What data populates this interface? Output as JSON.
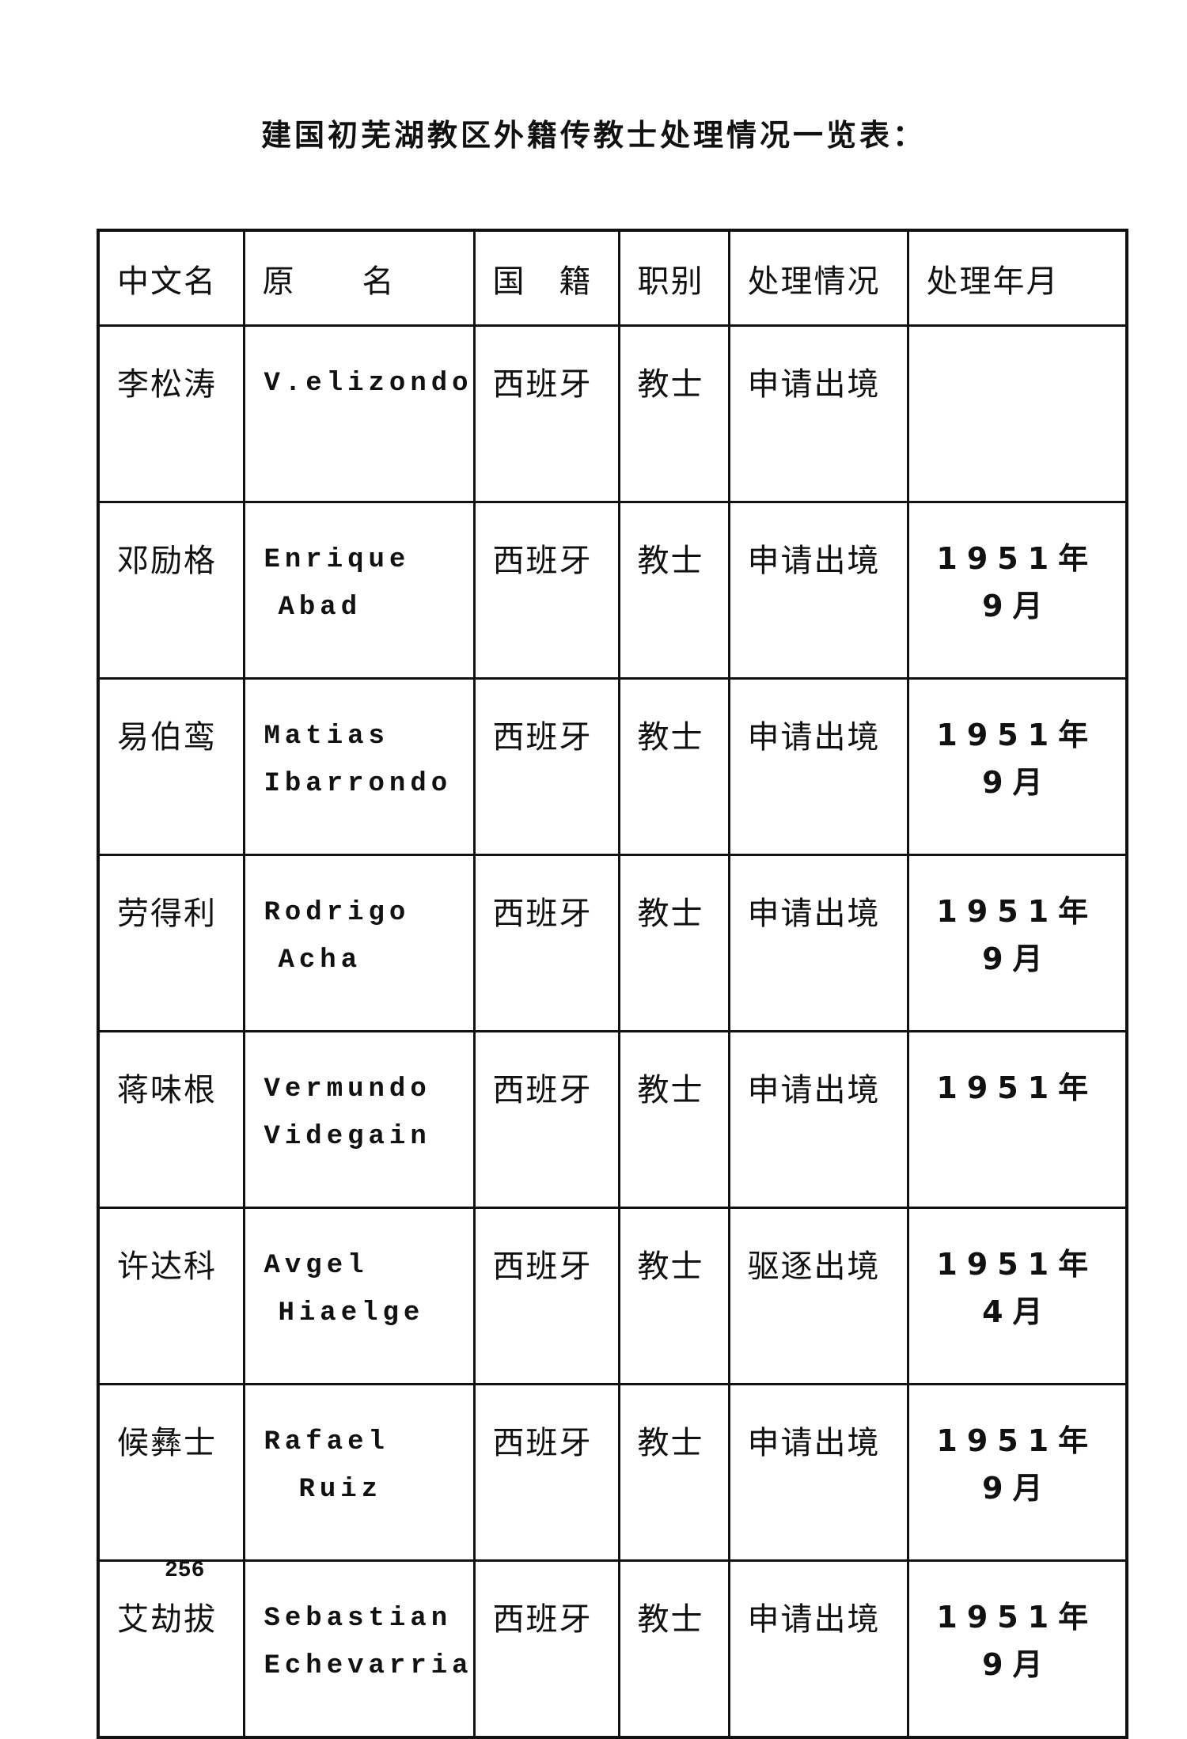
{
  "title": "建国初芜湖教区外籍传教士处理情况一览表：",
  "table": {
    "headers": [
      "中文名",
      "原　　名",
      "国　籍",
      "职别",
      "处理情况",
      "处理年月"
    ],
    "rows": [
      {
        "cn_name": "李松涛",
        "orig_name": [
          "V.elizondo",
          ""
        ],
        "nationality": "西班牙",
        "title": "教士",
        "status": "申请出境",
        "date": [
          "",
          ""
        ]
      },
      {
        "cn_name": "邓励格",
        "orig_name": [
          "Enrique",
          "Abad"
        ],
        "nationality": "西班牙",
        "title": "教士",
        "status": "申请出境",
        "date": [
          "1951年",
          "9月"
        ]
      },
      {
        "cn_name": "易伯鸾",
        "orig_name": [
          "Matias",
          "Ibarrondo"
        ],
        "nationality": "西班牙",
        "title": "教士",
        "status": "申请出境",
        "date": [
          "1951年",
          "9月"
        ]
      },
      {
        "cn_name": "劳得利",
        "orig_name": [
          "Rodrigo",
          "Acha"
        ],
        "nationality": "西班牙",
        "title": "教士",
        "status": "申请出境",
        "date": [
          "1951年",
          "9月"
        ]
      },
      {
        "cn_name": "蒋味根",
        "orig_name": [
          "Vermundo",
          "Videgain"
        ],
        "nationality": "西班牙",
        "title": "教士",
        "status": "申请出境",
        "date": [
          "1951年",
          ""
        ]
      },
      {
        "cn_name": "许达科",
        "orig_name": [
          "Avgel",
          "Hiaelge"
        ],
        "nationality": "西班牙",
        "title": "教士",
        "status": "驱逐出境",
        "date": [
          "1951年",
          "4月"
        ]
      },
      {
        "cn_name": "候彝士",
        "orig_name": [
          "Rafael",
          "Ruiz"
        ],
        "nationality": "西班牙",
        "title": "教士",
        "status": "申请出境",
        "date": [
          "1951年",
          "9月"
        ]
      },
      {
        "cn_name": "艾劫拔",
        "orig_name": [
          "Sebastian",
          "Echevarria"
        ],
        "nationality": "西班牙",
        "title": "教士",
        "status": "申请出境",
        "date": [
          "1951年",
          "9月"
        ]
      }
    ]
  },
  "page_number": "256"
}
